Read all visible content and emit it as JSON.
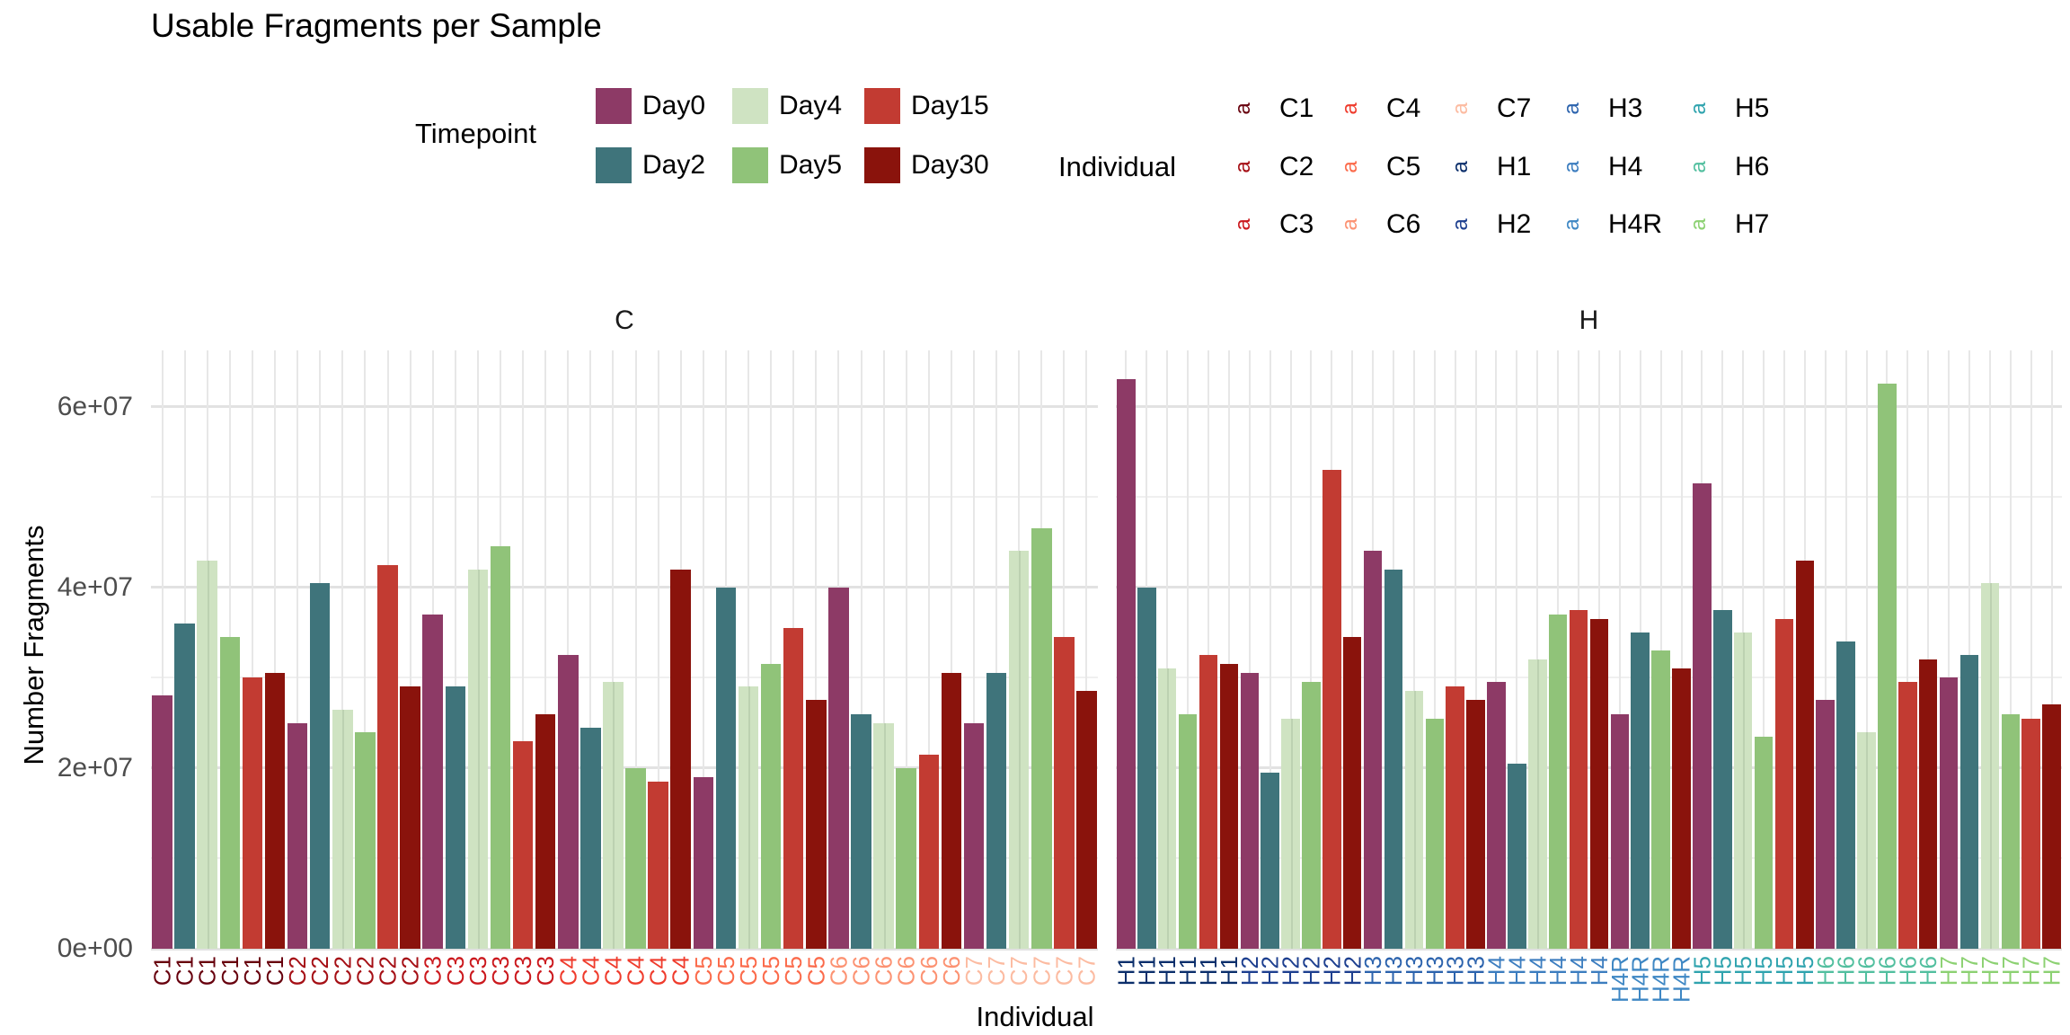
{
  "title": "Usable Fragments per Sample",
  "legend": {
    "timepoint_title": "Timepoint",
    "individual_title": "Individual",
    "individual_key_glyph": "a"
  },
  "chart_data": {
    "type": "bar",
    "title": "Usable Fragments per Sample",
    "xlabel": "Individual",
    "ylabel": "Number Fragments",
    "grid": true,
    "legend_position": "top",
    "ylim": [
      0,
      66200000
    ],
    "y_ticks": [
      {
        "value": 0,
        "label": "0e+00"
      },
      {
        "value": 20000000,
        "label": "2e+07"
      },
      {
        "value": 40000000,
        "label": "4e+07"
      },
      {
        "value": 60000000,
        "label": "6e+07"
      }
    ],
    "y_minor": [
      10000000,
      30000000,
      50000000
    ],
    "timepoints": [
      {
        "name": "Day0",
        "color": "#8D3A66"
      },
      {
        "name": "Day2",
        "color": "#3F747B"
      },
      {
        "name": "Day4",
        "color": "#CFE3C2"
      },
      {
        "name": "Day5",
        "color": "#90C379"
      },
      {
        "name": "Day15",
        "color": "#C23B32"
      },
      {
        "name": "Day30",
        "color": "#8A130C"
      }
    ],
    "individuals": [
      {
        "name": "C1",
        "color": "#67000D"
      },
      {
        "name": "C2",
        "color": "#A50F15"
      },
      {
        "name": "C3",
        "color": "#CB181D"
      },
      {
        "name": "C4",
        "color": "#EF3B2C"
      },
      {
        "name": "C5",
        "color": "#FB6A4A"
      },
      {
        "name": "C6",
        "color": "#FC9272"
      },
      {
        "name": "C7",
        "color": "#FCBBA1"
      },
      {
        "name": "H1",
        "color": "#0B2E6B"
      },
      {
        "name": "H2",
        "color": "#1D3F8F"
      },
      {
        "name": "H3",
        "color": "#2C63AD"
      },
      {
        "name": "H4",
        "color": "#3C7DBF"
      },
      {
        "name": "H4R",
        "color": "#3E87C4"
      },
      {
        "name": "H5",
        "color": "#2FA3AE"
      },
      {
        "name": "H6",
        "color": "#52BF9F"
      },
      {
        "name": "H7",
        "color": "#8CD172"
      }
    ],
    "facets": [
      {
        "label": "C",
        "groups": [
          {
            "individual": "C1",
            "values": {
              "Day0": 28000000,
              "Day2": 36000000,
              "Day4": 43000000,
              "Day5": 34500000,
              "Day15": 30000000,
              "Day30": 30500000
            }
          },
          {
            "individual": "C2",
            "values": {
              "Day0": 25000000,
              "Day2": 40500000,
              "Day4": 26500000,
              "Day5": 24000000,
              "Day15": 42500000,
              "Day30": 29000000
            }
          },
          {
            "individual": "C3",
            "values": {
              "Day0": 37000000,
              "Day2": 29000000,
              "Day4": 42000000,
              "Day5": 44500000,
              "Day15": 23000000,
              "Day30": 26000000
            }
          },
          {
            "individual": "C4",
            "values": {
              "Day0": 32500000,
              "Day2": 24500000,
              "Day4": 29500000,
              "Day5": 20000000,
              "Day15": 18500000,
              "Day30": 42000000
            }
          },
          {
            "individual": "C5",
            "values": {
              "Day0": 19000000,
              "Day2": 40000000,
              "Day4": 29000000,
              "Day5": 31500000,
              "Day15": 35500000,
              "Day30": 27500000
            }
          },
          {
            "individual": "C6",
            "values": {
              "Day0": 40000000,
              "Day2": 26000000,
              "Day4": 25000000,
              "Day5": 20000000,
              "Day15": 21500000,
              "Day30": 30500000
            }
          },
          {
            "individual": "C7",
            "values": {
              "Day0": 25000000,
              "Day2": 30500000,
              "Day4": 44000000,
              "Day5": 46500000,
              "Day15": 34500000,
              "Day30": 28500000
            }
          }
        ]
      },
      {
        "label": "H",
        "groups": [
          {
            "individual": "H1",
            "values": {
              "Day0": 63000000,
              "Day2": 40000000,
              "Day4": 31000000,
              "Day5": 26000000,
              "Day15": 32500000,
              "Day30": 31500000
            }
          },
          {
            "individual": "H2",
            "values": {
              "Day0": 30500000,
              "Day2": 19500000,
              "Day4": 25500000,
              "Day5": 29500000,
              "Day15": 53000000,
              "Day30": 34500000
            }
          },
          {
            "individual": "H3",
            "values": {
              "Day0": 44000000,
              "Day2": 42000000,
              "Day4": 28500000,
              "Day5": 25500000,
              "Day15": 29000000,
              "Day30": 27500000
            }
          },
          {
            "individual": "H4",
            "values": {
              "Day0": 29500000,
              "Day2": 20500000,
              "Day4": 32000000,
              "Day5": 37000000,
              "Day15": 37500000,
              "Day30": 36500000
            }
          },
          {
            "individual": "H4R",
            "values": {
              "Day0": 26000000,
              "Day2": 35000000,
              "Day5": 33000000,
              "Day30": 31000000
            }
          },
          {
            "individual": "H5",
            "values": {
              "Day0": 51500000,
              "Day2": 37500000,
              "Day4": 35000000,
              "Day5": 23500000,
              "Day15": 36500000,
              "Day30": 43000000
            }
          },
          {
            "individual": "H6",
            "values": {
              "Day0": 27500000,
              "Day2": 34000000,
              "Day4": 24000000,
              "Day5": 62500000,
              "Day15": 29500000,
              "Day30": 32000000
            }
          },
          {
            "individual": "H7",
            "values": {
              "Day0": 30000000,
              "Day2": 32500000,
              "Day4": 40500000,
              "Day5": 26000000,
              "Day15": 25500000,
              "Day30": 27000000
            }
          }
        ]
      }
    ]
  }
}
